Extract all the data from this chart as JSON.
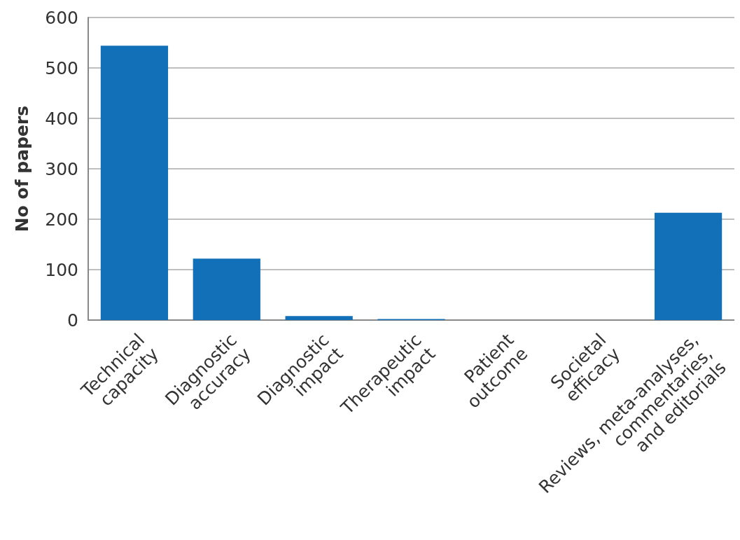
{
  "chart_data": {
    "type": "bar",
    "ylabel": "No of papers",
    "categories": [
      "Technical\ncapacity",
      "Diagnostic\naccuracy",
      "Diagnostic\nimpact",
      "Therapeutic\nimpact",
      "Patient\noutcome",
      "Societal\nefficacy",
      "Reviews, meta-analyses,\ncommentaries,\nand editorials"
    ],
    "values": [
      544,
      122,
      8,
      2,
      0,
      0,
      213
    ],
    "color": "#1170b8",
    "ylim": [
      0,
      600
    ],
    "yticks": [
      0,
      100,
      200,
      300,
      400,
      500,
      600
    ],
    "grid": "y"
  }
}
